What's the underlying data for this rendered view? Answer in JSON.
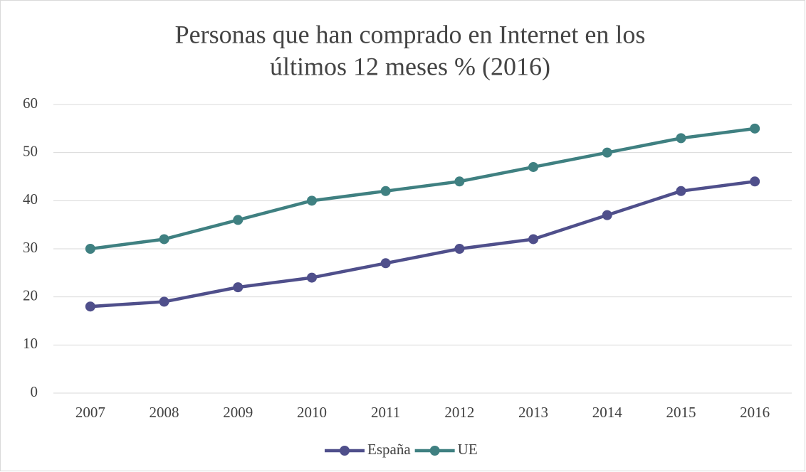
{
  "chart_data": {
    "type": "line",
    "title": [
      "Personas que han comprado en Internet en los",
      "últimos 12 meses % (2016)"
    ],
    "categories": [
      "2007",
      "2008",
      "2009",
      "2010",
      "2011",
      "2012",
      "2013",
      "2014",
      "2015",
      "2016"
    ],
    "series": [
      {
        "name": "España",
        "color": "#4f4f8b",
        "values": [
          18,
          19,
          22,
          24,
          27,
          30,
          32,
          37,
          42,
          44
        ]
      },
      {
        "name": "UE",
        "color": "#3f8081",
        "values": [
          30,
          32,
          36,
          40,
          42,
          44,
          47,
          50,
          53,
          55
        ]
      }
    ],
    "ylim": [
      0,
      60
    ],
    "yticks": [
      0,
      10,
      20,
      30,
      40,
      50,
      60
    ],
    "grid": true,
    "legend": "bottom"
  }
}
